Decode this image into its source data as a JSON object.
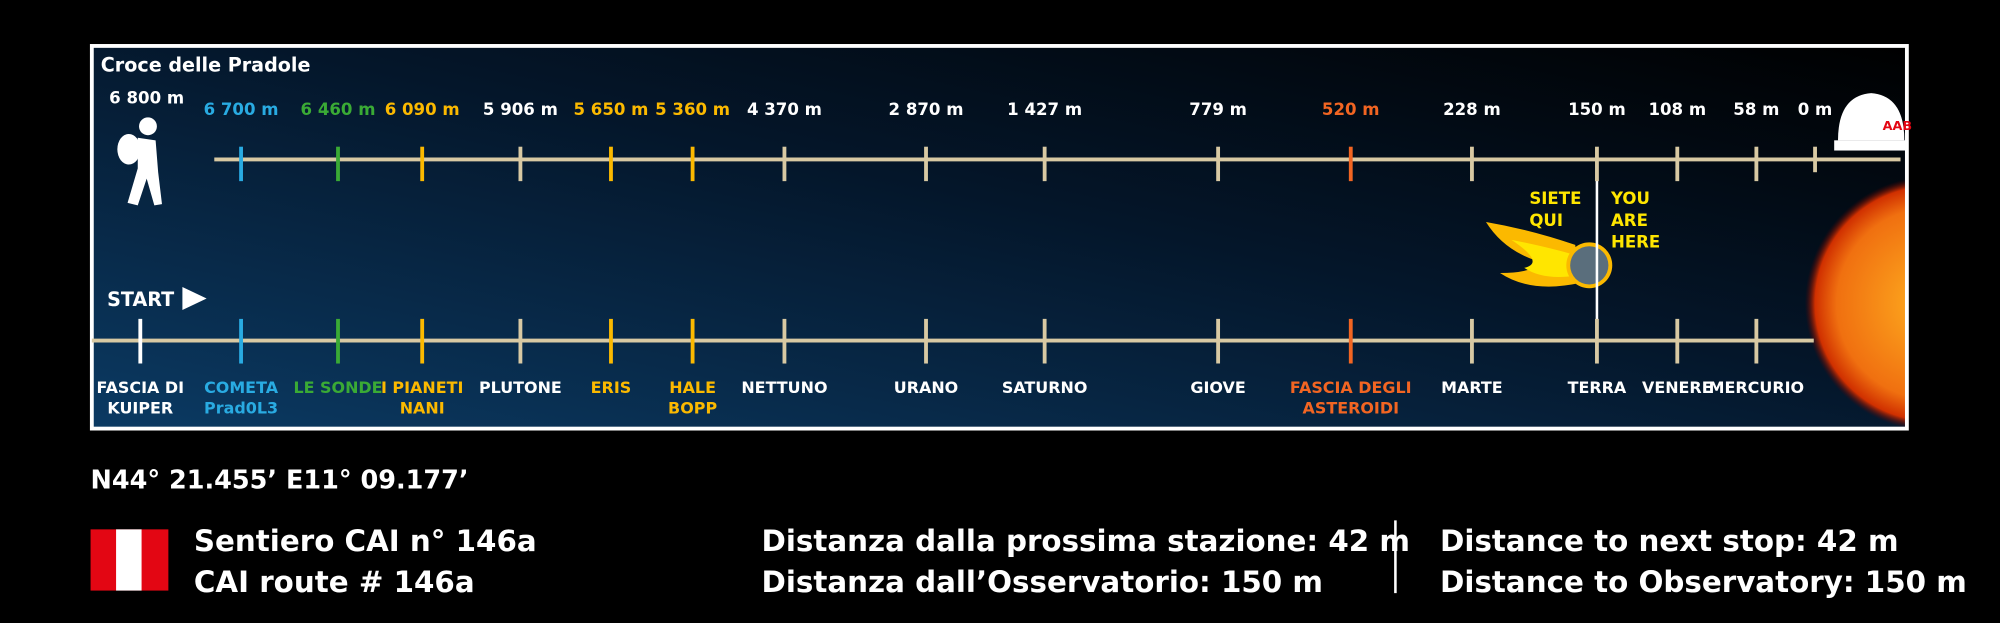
{
  "title": "Croce delle Pradole",
  "start_label": "START",
  "stations": [
    {
      "distance": "6 800 m",
      "name": [
        "FASCIA DI",
        "KUIPER"
      ],
      "color": "#ffffff"
    },
    {
      "distance": "6 700 m",
      "name": [
        "COMETA",
        "Prad0L3"
      ],
      "color": "#29abe2"
    },
    {
      "distance": "6 460 m",
      "name": [
        "LE SONDE"
      ],
      "color": "#3aaa35"
    },
    {
      "distance": "6 090 m",
      "name": [
        "I PIANETI",
        "NANI"
      ],
      "color": "#fbb900"
    },
    {
      "distance": "5 906 m",
      "name": [
        "PLUTONE"
      ],
      "color": "#d8c9a3"
    },
    {
      "distance": "5 650 m",
      "name": [
        "ERIS"
      ],
      "color": "#fbb900"
    },
    {
      "distance": "5 360 m",
      "name": [
        "HALE",
        "BOPP"
      ],
      "color": "#fbb900"
    },
    {
      "distance": "4 370 m",
      "name": [
        "NETTUNO"
      ],
      "color": "#d8c9a3"
    },
    {
      "distance": "2 870 m",
      "name": [
        "URANO"
      ],
      "color": "#d8c9a3"
    },
    {
      "distance": "1 427 m",
      "name": [
        "SATURNO"
      ],
      "color": "#d8c9a3"
    },
    {
      "distance": "779 m",
      "name": [
        "GIOVE"
      ],
      "color": "#d8c9a3"
    },
    {
      "distance": "520 m",
      "name": [
        "FASCIA DEGLI",
        "ASTEROIDI"
      ],
      "color": "#f26522"
    },
    {
      "distance": "228 m",
      "name": [
        "MARTE"
      ],
      "color": "#d8c9a3"
    },
    {
      "distance": "150 m",
      "name": [
        "TERRA"
      ],
      "color": "#d8c9a3"
    },
    {
      "distance": "108 m",
      "name": [
        "VENERE"
      ],
      "color": "#d8c9a3"
    },
    {
      "distance": "58 m",
      "name": [
        "MERCURIO"
      ],
      "color": "#d8c9a3"
    }
  ],
  "end_distance": "0 m",
  "you_are_here": {
    "it": [
      "SIETE",
      "QUI"
    ],
    "en": [
      "YOU",
      "ARE",
      "HERE"
    ]
  },
  "coordinates": "N44° 21.455’ E11° 09.177’",
  "route": [
    "Sentiero CAI n° 146a",
    "CAI route # 146a"
  ],
  "distances_it": [
    "Distanza dalla prossima stazione: 42 m",
    "Distanza dall’Osservatorio: 150 m"
  ],
  "distances_en": [
    "Distance to next stop: 42 m",
    "Distance to Observatory: 150 m"
  ]
}
